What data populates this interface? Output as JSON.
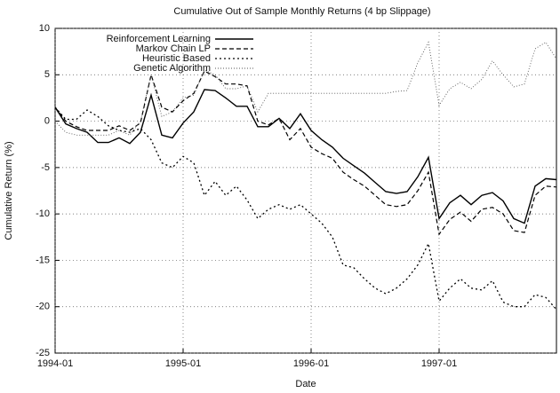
{
  "chart_data": {
    "type": "line",
    "title": "Cumulative Out of Sample Monthly Returns (4 bp Slippage)",
    "xlabel": "Date",
    "ylabel": "Cumulative Return (%)",
    "x": [
      "1994-01",
      "1994-02",
      "1994-03",
      "1994-04",
      "1994-05",
      "1994-06",
      "1994-07",
      "1994-08",
      "1994-09",
      "1994-10",
      "1994-11",
      "1994-12",
      "1995-01",
      "1995-02",
      "1995-03",
      "1995-04",
      "1995-05",
      "1995-06",
      "1995-07",
      "1995-08",
      "1995-09",
      "1995-10",
      "1995-11",
      "1995-12",
      "1996-01",
      "1996-02",
      "1996-03",
      "1996-04",
      "1996-05",
      "1996-06",
      "1996-07",
      "1996-08",
      "1996-09",
      "1996-10",
      "1996-11",
      "1996-12",
      "1997-01",
      "1997-02",
      "1997-03",
      "1997-04",
      "1997-05",
      "1997-06",
      "1997-07",
      "1997-08",
      "1997-09",
      "1997-10",
      "1997-11",
      "1997-12"
    ],
    "xlim": [
      "1994-01",
      "1997-12"
    ],
    "xticks": [
      "1994-01",
      "1995-01",
      "1996-01",
      "1997-01"
    ],
    "ylim": [
      -25,
      10
    ],
    "yticks": [
      -25,
      -20,
      -15,
      -10,
      -5,
      0,
      5,
      10
    ],
    "grid": true,
    "legend": "upper left",
    "series": [
      {
        "name": "Reinforcement Learning",
        "color": "#000000",
        "style": "solid",
        "values": [
          1.5,
          -0.3,
          -0.8,
          -1.2,
          -2.3,
          -2.3,
          -1.8,
          -2.4,
          -1.2,
          2.8,
          -1.5,
          -1.8,
          -0.2,
          1,
          3.4,
          3.3,
          2.5,
          1.6,
          1.6,
          -0.6,
          -0.6,
          0.3,
          -0.8,
          0.8,
          -1,
          -2,
          -2.8,
          -4,
          -4.8,
          -5.6,
          -6.6,
          -7.6,
          -7.8,
          -7.6,
          -6,
          -3.9,
          -10.5,
          -8.8,
          -8,
          -9,
          -8,
          -7.7,
          -8.6,
          -10.5,
          -11,
          -7,
          -6.2,
          -6.3
        ]
      },
      {
        "name": "Markov Chain LP",
        "color": "#000000",
        "style": "dashed",
        "values": [
          1.5,
          0,
          -0.6,
          -1,
          -1,
          -1,
          -0.5,
          -1,
          -0.2,
          5,
          1.5,
          1,
          2.2,
          3,
          5.4,
          4.8,
          4,
          4,
          3.8,
          0,
          -0.4,
          0.3,
          -2,
          -0.8,
          -2.8,
          -3.5,
          -4,
          -5.5,
          -6.3,
          -7,
          -8,
          -9,
          -9.2,
          -9,
          -7.5,
          -5.5,
          -12.2,
          -10.6,
          -9.8,
          -10.8,
          -9.5,
          -9.3,
          -10,
          -11.8,
          -12,
          -8,
          -7,
          -7.1
        ]
      },
      {
        "name": "Heuristic Based",
        "color": "#000000",
        "style": "dotted",
        "values": [
          1.5,
          0.2,
          0.2,
          1.2,
          0.5,
          -0.5,
          -1,
          -1.2,
          -0.8,
          -2,
          -4.5,
          -5,
          -3.8,
          -4.5,
          -8,
          -6.5,
          -8,
          -7,
          -8.5,
          -10.5,
          -9.5,
          -9,
          -9.5,
          -9,
          -10,
          -11,
          -12.5,
          -15.5,
          -15.8,
          -17,
          -18,
          -18.6,
          -18,
          -17,
          -15.5,
          -13.2,
          -19.4,
          -18,
          -17,
          -18,
          -18.2,
          -17.2,
          -19.5,
          -20,
          -20,
          -18.7,
          -19,
          -20.3
        ]
      },
      {
        "name": "Genetic Algorithm",
        "color": "#555555",
        "style": "fine",
        "values": [
          0,
          -1.2,
          -1.5,
          -1.5,
          -1.5,
          -1.5,
          -1,
          -1.5,
          0,
          5,
          0.5,
          1,
          2.5,
          2.8,
          5.5,
          5,
          3.5,
          3.5,
          3.8,
          1,
          3,
          3,
          3,
          3,
          3,
          3,
          3,
          3,
          3,
          3,
          3,
          3,
          3.2,
          3.3,
          6.3,
          8.5,
          1.7,
          3.5,
          4.2,
          3.5,
          4.5,
          6.5,
          5,
          3.7,
          4,
          7.8,
          8.5,
          6.7
        ]
      }
    ]
  }
}
